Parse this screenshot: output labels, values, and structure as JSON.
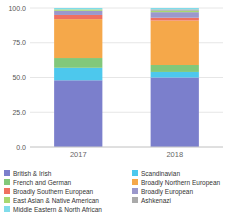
{
  "chart_data": {
    "type": "bar",
    "stacked": true,
    "categories": [
      "2017",
      "2018"
    ],
    "series": [
      {
        "name": "British & Irish",
        "color": "#7B7FCC",
        "values": [
          48,
          50
        ]
      },
      {
        "name": "Scandinavian",
        "color": "#4DC8ED",
        "values": [
          9,
          4
        ]
      },
      {
        "name": "French and German",
        "color": "#82C87A",
        "values": [
          7,
          5
        ]
      },
      {
        "name": "Broadly Northern European",
        "color": "#F5A84A",
        "values": [
          28,
          32
        ]
      },
      {
        "name": "Broadly Southern European",
        "color": "#F07060",
        "values": [
          3,
          2
        ]
      },
      {
        "name": "Broadly European",
        "color": "#9B98CC",
        "values": [
          3,
          4
        ]
      },
      {
        "name": "East Asian & Native American",
        "color": "#A8D870",
        "values": [
          1,
          1
        ]
      },
      {
        "name": "Ashkenazi",
        "color": "#AAAAAA",
        "values": [
          0,
          1
        ]
      },
      {
        "name": "Middle Eastern & North African",
        "color": "#80DCEA",
        "values": [
          1,
          1
        ]
      }
    ],
    "ylim": [
      0,
      100
    ],
    "yticks": [
      {
        "value": 0,
        "label": "0.0"
      },
      {
        "value": 25,
        "label": "25.0"
      },
      {
        "value": 50,
        "label": "50.0"
      },
      {
        "value": 75,
        "label": "75.0"
      },
      {
        "value": 100,
        "label": "100.0"
      }
    ],
    "grid": true,
    "legend": "bottom"
  }
}
